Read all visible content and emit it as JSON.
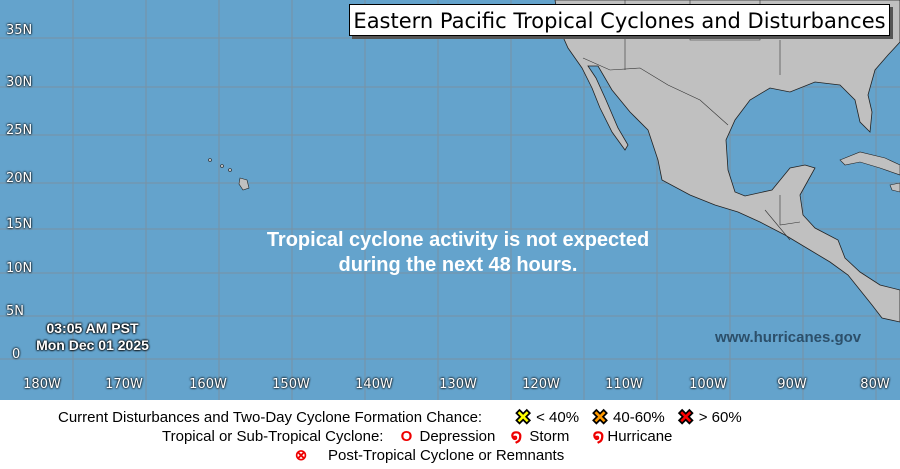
{
  "title": "Eastern Pacific Tropical Cyclones and Disturbances",
  "message": [
    "Tropical cyclone activity is not expected",
    "during the next 48 hours."
  ],
  "timestamp": {
    "time": "03:05 AM PST",
    "date": "Mon Dec 01 2025"
  },
  "website": "www.hurricanes.gov",
  "lat_labels": [
    "35N",
    "30N",
    "25N",
    "20N",
    "15N",
    "10N",
    "5N",
    "0"
  ],
  "lon_labels": [
    "180W",
    "170W",
    "160W",
    "150W",
    "140W",
    "130W",
    "120W",
    "110W",
    "100W",
    "90W",
    "80W"
  ],
  "legend": {
    "row1_label": "Current Disturbances and Two-Day Cyclone Formation Chance:",
    "chances": [
      {
        "label": "< 40%",
        "color": "#ffff00"
      },
      {
        "label": "40-60%",
        "color": "#ff9900"
      },
      {
        "label": "> 60%",
        "color": "#ff0000"
      }
    ],
    "row2_label": "Tropical or Sub-Tropical Cyclone:",
    "cyclones": [
      {
        "label": "Depression"
      },
      {
        "label": "Storm"
      },
      {
        "label": "Hurricane"
      }
    ],
    "post_tropical": "Post-Tropical Cyclone or Remnants"
  },
  "colors": {
    "ocean": "#64a3cc",
    "land": "#c0c0c0",
    "symbol_red": "#ee0000"
  }
}
